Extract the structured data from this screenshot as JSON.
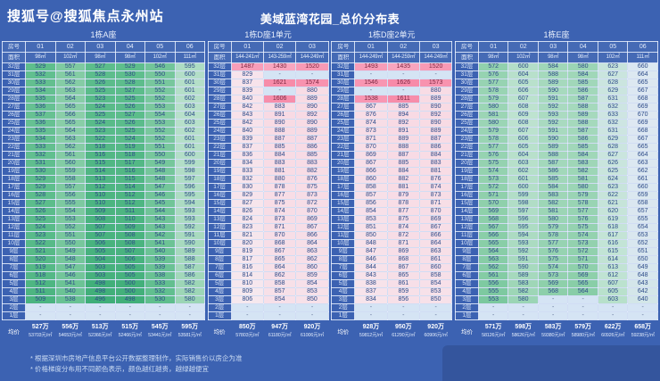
{
  "page": {
    "publisher": "搜狐号@搜狐焦点永州站",
    "title": "美域蓝湾花园_总价分布表",
    "footnotes": [
      "* 根据深圳市房地产信息平台公开数据整理制作，实际销售价以房企为准",
      "* 价格梯度分布用不同颜色表示，颜色越红越贵，越绿越便宜"
    ]
  },
  "labels": {
    "room": "房号",
    "area": "面积",
    "avg": "均价"
  },
  "colors": {
    "background": "#3c62b2",
    "empty_cell": "#d5e4f4",
    "empty_text": "#5a6c92",
    "text_low": "#2d4b89",
    "text_high": "#7d2a44",
    "high_text_threshold": 1400,
    "scale": [
      [
        496,
        "#3fae78"
      ],
      [
        530,
        "#5fbe8d"
      ],
      [
        570,
        "#8fd0ab"
      ],
      [
        610,
        "#bfe3d1"
      ],
      [
        650,
        "#d9e7ef"
      ],
      [
        700,
        "#e5eaf7"
      ],
      [
        800,
        "#f6e9ef"
      ],
      [
        900,
        "#f8d9e3"
      ],
      [
        1430,
        "#f9a6bf"
      ],
      [
        1650,
        "#f788a6"
      ]
    ]
  },
  "chart_data": {
    "type": "heatmap",
    "value_unit": "万元 (total price)",
    "floors": [
      "32层",
      "31层",
      "30层",
      "29层",
      "28层",
      "27层",
      "26层",
      "25层",
      "24层",
      "23层",
      "22层",
      "21层",
      "20层",
      "19层",
      "18层",
      "17层",
      "16层",
      "15层",
      "14层",
      "13层",
      "12层",
      "11层",
      "10层",
      "9层",
      "8层",
      "7层",
      "6层",
      "5层",
      "4层",
      "3层",
      "2层",
      "1层"
    ],
    "tables": [
      {
        "title": "1栋A座",
        "units": [
          "01",
          "02",
          "03",
          "04",
          "05",
          "06"
        ],
        "areas": [
          "98㎡",
          "102㎡",
          "98㎡",
          "98㎡",
          "102㎡",
          "111㎡"
        ],
        "values": [
          [
            529,
            557,
            527,
            529,
            546,
            595
          ],
          [
            532,
            561,
            528,
            530,
            550,
            600
          ],
          [
            533,
            562,
            526,
            528,
            551,
            601
          ],
          [
            534,
            563,
            525,
            527,
            552,
            601
          ],
          [
            535,
            564,
            523,
            525,
            552,
            602
          ],
          [
            536,
            565,
            524,
            526,
            553,
            603
          ],
          [
            537,
            566,
            525,
            527,
            554,
            604
          ],
          [
            536,
            565,
            524,
            526,
            553,
            603
          ],
          [
            535,
            564,
            523,
            525,
            552,
            602
          ],
          [
            534,
            563,
            522,
            524,
            552,
            601
          ],
          [
            533,
            562,
            518,
            519,
            551,
            601
          ],
          [
            532,
            561,
            516,
            518,
            550,
            600
          ],
          [
            531,
            560,
            515,
            517,
            549,
            599
          ],
          [
            530,
            559,
            514,
            516,
            548,
            598
          ],
          [
            529,
            558,
            513,
            515,
            548,
            597
          ],
          [
            529,
            557,
            512,
            514,
            547,
            596
          ],
          [
            528,
            556,
            510,
            512,
            546,
            595
          ],
          [
            527,
            555,
            510,
            512,
            545,
            594
          ],
          [
            526,
            554,
            509,
            511,
            544,
            593
          ],
          [
            525,
            553,
            508,
            510,
            543,
            593
          ],
          [
            524,
            552,
            507,
            509,
            543,
            592
          ],
          [
            523,
            551,
            507,
            508,
            542,
            591
          ],
          [
            522,
            550,
            506,
            508,
            541,
            590
          ],
          [
            521,
            549,
            505,
            507,
            540,
            589
          ],
          [
            520,
            548,
            504,
            506,
            539,
            588
          ],
          [
            519,
            547,
            503,
            505,
            539,
            587
          ],
          [
            518,
            546,
            503,
            505,
            538,
            586
          ],
          [
            512,
            541,
            498,
            500,
            533,
            582
          ],
          [
            511,
            540,
            498,
            500,
            532,
            582
          ],
          [
            509,
            538,
            496,
            498,
            530,
            580
          ],
          [
            "-",
            "-",
            "-",
            "-",
            "-",
            "-"
          ],
          [
            "-",
            "-",
            "-",
            "-",
            "-",
            "-"
          ]
        ],
        "avg_total": [
          "527万",
          "556万",
          "513万",
          "515万",
          "545万",
          "595万"
        ],
        "avg_unit": [
          "53703元/㎡",
          "54653元/㎡",
          "52366元/㎡",
          "52466元/㎡",
          "53441元/㎡",
          "53581元/㎡"
        ]
      },
      {
        "title": "1栋D座1单元",
        "units": [
          "01",
          "02",
          "03"
        ],
        "areas": [
          "144-241㎡",
          "143-259㎡",
          "144-249㎡"
        ],
        "values": [
          [
            1487,
            1430,
            1520
          ],
          [
            829,
            "-",
            "-"
          ],
          [
            837,
            1621,
            1574
          ],
          [
            839,
            "-",
            880
          ],
          [
            840,
            1606,
            889
          ],
          [
            842,
            883,
            890
          ],
          [
            843,
            891,
            892
          ],
          [
            842,
            890,
            890
          ],
          [
            840,
            888,
            889
          ],
          [
            839,
            887,
            887
          ],
          [
            837,
            885,
            886
          ],
          [
            836,
            884,
            885
          ],
          [
            834,
            883,
            883
          ],
          [
            833,
            881,
            882
          ],
          [
            832,
            880,
            876
          ],
          [
            830,
            878,
            875
          ],
          [
            829,
            877,
            873
          ],
          [
            827,
            875,
            872
          ],
          [
            826,
            874,
            870
          ],
          [
            824,
            873,
            869
          ],
          [
            823,
            871,
            867
          ],
          [
            821,
            870,
            866
          ],
          [
            820,
            868,
            864
          ],
          [
            819,
            867,
            863
          ],
          [
            817,
            865,
            862
          ],
          [
            816,
            864,
            860
          ],
          [
            814,
            862,
            859
          ],
          [
            810,
            858,
            854
          ],
          [
            809,
            857,
            853
          ],
          [
            806,
            854,
            850
          ],
          [
            "-",
            "-",
            "-"
          ],
          [
            "-",
            "-",
            "-"
          ]
        ],
        "avg_total": [
          "850万",
          "947万",
          "920万"
        ],
        "avg_unit": [
          "57803元/㎡",
          "61180元/㎡",
          "61006元/㎡"
        ]
      },
      {
        "title": "1栋D座2单元",
        "units": [
          "01",
          "02",
          "03"
        ],
        "areas": [
          "144-249㎡",
          "144-259㎡",
          "144-249㎡"
        ],
        "values": [
          [
            1493,
            1435,
            1520
          ],
          [
            "-",
            "-",
            "-"
          ],
          [
            1546,
            1626,
            1573
          ],
          [
            "-",
            "-",
            880
          ],
          [
            1538,
            1611,
            889
          ],
          [
            867,
            885,
            890
          ],
          [
            876,
            894,
            892
          ],
          [
            874,
            892,
            890
          ],
          [
            873,
            891,
            889
          ],
          [
            871,
            889,
            887
          ],
          [
            870,
            888,
            886
          ],
          [
            869,
            887,
            884
          ],
          [
            867,
            885,
            883
          ],
          [
            866,
            884,
            881
          ],
          [
            860,
            882,
            876
          ],
          [
            858,
            881,
            874
          ],
          [
            857,
            879,
            873
          ],
          [
            856,
            878,
            871
          ],
          [
            854,
            877,
            870
          ],
          [
            853,
            875,
            869
          ],
          [
            851,
            874,
            867
          ],
          [
            850,
            872,
            866
          ],
          [
            848,
            871,
            864
          ],
          [
            847,
            869,
            863
          ],
          [
            846,
            868,
            861
          ],
          [
            844,
            867,
            860
          ],
          [
            843,
            865,
            858
          ],
          [
            838,
            861,
            854
          ],
          [
            837,
            859,
            853
          ],
          [
            834,
            856,
            850
          ],
          [
            "-",
            "-",
            "-"
          ],
          [
            "-",
            "-",
            "-"
          ]
        ],
        "avg_total": [
          "928万",
          "950万",
          "920万"
        ],
        "avg_unit": [
          "59812元/㎡",
          "61290元/㎡",
          "60906元/㎡"
        ]
      },
      {
        "title": "1栋E座",
        "units": [
          "01",
          "02",
          "03",
          "04",
          "05",
          "06"
        ],
        "areas": [
          "98㎡",
          "102㎡",
          "98㎡",
          "98㎡",
          "102㎡",
          "111㎡"
        ],
        "values": [
          [
            572,
            600,
            584,
            580,
            623,
            660
          ],
          [
            576,
            604,
            588,
            584,
            627,
            664
          ],
          [
            577,
            605,
            589,
            585,
            628,
            665
          ],
          [
            578,
            606,
            590,
            586,
            629,
            667
          ],
          [
            579,
            607,
            591,
            587,
            631,
            668
          ],
          [
            580,
            608,
            592,
            588,
            632,
            669
          ],
          [
            581,
            609,
            593,
            589,
            633,
            670
          ],
          [
            580,
            608,
            592,
            588,
            632,
            669
          ],
          [
            579,
            607,
            591,
            587,
            631,
            668
          ],
          [
            578,
            606,
            590,
            586,
            629,
            667
          ],
          [
            577,
            605,
            589,
            585,
            628,
            665
          ],
          [
            576,
            604,
            588,
            584,
            627,
            664
          ],
          [
            575,
            603,
            587,
            583,
            626,
            663
          ],
          [
            574,
            602,
            586,
            582,
            625,
            662
          ],
          [
            573,
            601,
            585,
            581,
            624,
            661
          ],
          [
            572,
            600,
            584,
            580,
            623,
            660
          ],
          [
            571,
            599,
            583,
            579,
            622,
            659
          ],
          [
            570,
            598,
            582,
            578,
            621,
            658
          ],
          [
            569,
            597,
            581,
            577,
            620,
            657
          ],
          [
            568,
            596,
            580,
            576,
            619,
            655
          ],
          [
            567,
            595,
            579,
            575,
            618,
            654
          ],
          [
            566,
            594,
            578,
            574,
            617,
            653
          ],
          [
            565,
            593,
            577,
            573,
            616,
            652
          ],
          [
            564,
            592,
            576,
            572,
            615,
            651
          ],
          [
            563,
            591,
            575,
            571,
            614,
            650
          ],
          [
            562,
            590,
            574,
            570,
            613,
            649
          ],
          [
            561,
            589,
            573,
            569,
            612,
            648
          ],
          [
            556,
            583,
            569,
            565,
            607,
            643
          ],
          [
            555,
            582,
            568,
            564,
            605,
            642
          ],
          [
            553,
            580,
            "-",
            "-",
            603,
            640
          ],
          [
            "-",
            "-",
            "-",
            "-",
            "-",
            "-"
          ],
          [
            "-",
            "-",
            "-",
            "-",
            "-",
            "-"
          ]
        ],
        "avg_total": [
          "571万",
          "598万",
          "583万",
          "579万",
          "622万",
          "658万"
        ],
        "avg_unit": [
          "58126元/㎡",
          "58626元/㎡",
          "59380元/㎡",
          "58980元/㎡",
          "60926元/㎡",
          "59238元/㎡"
        ]
      }
    ]
  }
}
